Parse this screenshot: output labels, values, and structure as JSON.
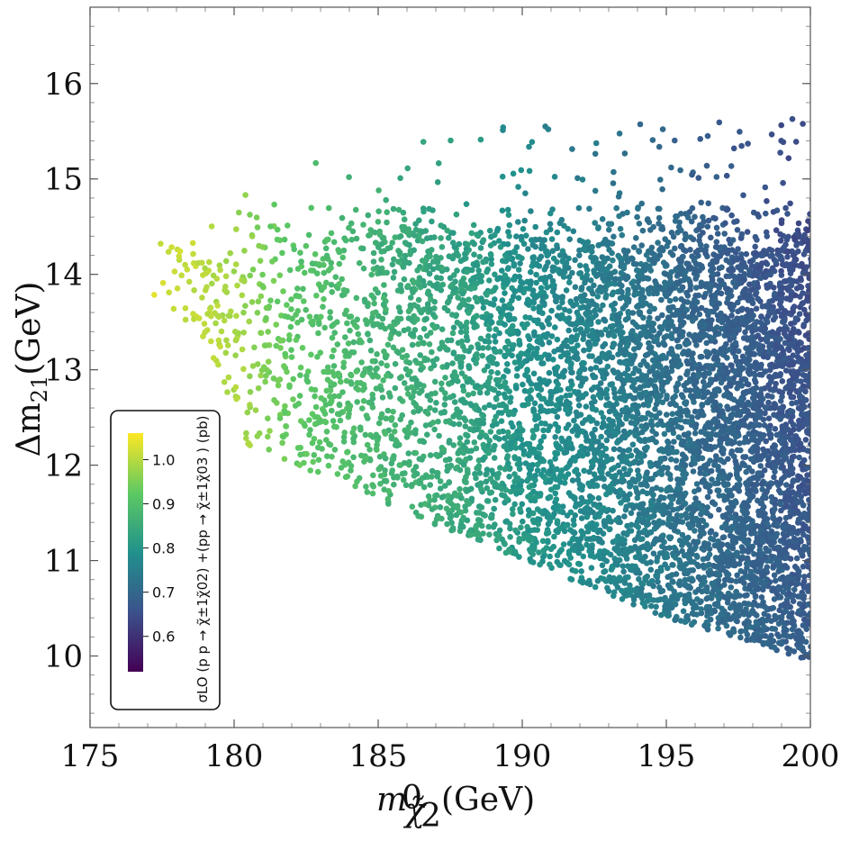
{
  "chart_data": {
    "type": "scatter",
    "title": "",
    "xlabel_main": "m",
    "xlabel_sub": "χ̃",
    "xlabel_sub2": "2",
    "xlabel_sup": "0",
    "xlabel_unit": "(GeV)",
    "ylabel_main": "Δm",
    "ylabel_sub": "21",
    "ylabel_unit": "(GeV)",
    "xlim": [
      175,
      200
    ],
    "ylim": [
      9.25,
      16.8
    ],
    "x_ticks": [
      "175",
      "180",
      "185",
      "190",
      "195",
      "200"
    ],
    "y_ticks": [
      "10",
      "11",
      "12",
      "13",
      "14",
      "15",
      "16"
    ],
    "colorbar": {
      "title": "σLO (p p → χ̃±1χ̃02) +(pp → χ̃±1χ̃03 ) (pb)",
      "range": [
        0.52,
        1.06
      ],
      "ticks": [
        "0.6",
        "0.7",
        "0.8",
        "0.9",
        "1.0"
      ],
      "colormap": [
        "#440154",
        "#3b528b",
        "#21918c",
        "#5ec962",
        "#fde725"
      ]
    },
    "region": {
      "description": "dense cloud of points; upper edge rises from ~14.3 GeV at 177 GeV to ~15.6 GeV at 200 GeV, lower edge falls from ~12.1 GeV at 181 GeV to ~10.0 GeV at 200 GeV",
      "upper_edge": [
        [
          176.8,
          14.35
        ],
        [
          178,
          14.5
        ],
        [
          180,
          15.0
        ],
        [
          182,
          15.2
        ],
        [
          186,
          15.5
        ],
        [
          190,
          15.55
        ],
        [
          195,
          15.6
        ],
        [
          200,
          15.7
        ]
      ],
      "lower_edge": [
        [
          177.5,
          13.7
        ],
        [
          179,
          13.3
        ],
        [
          180.5,
          12.2
        ],
        [
          183,
          11.9
        ],
        [
          186,
          11.5
        ],
        [
          190,
          11.0
        ],
        [
          195,
          10.4
        ],
        [
          200,
          9.95
        ]
      ],
      "color_vs_mass": [
        [
          177,
          1.05
        ],
        [
          180,
          1.0
        ],
        [
          182,
          0.93
        ],
        [
          185,
          0.88
        ],
        [
          188,
          0.84
        ],
        [
          190,
          0.8
        ],
        [
          193,
          0.76
        ],
        [
          196,
          0.71
        ],
        [
          200,
          0.66
        ]
      ],
      "approx_point_count": 7000
    }
  }
}
